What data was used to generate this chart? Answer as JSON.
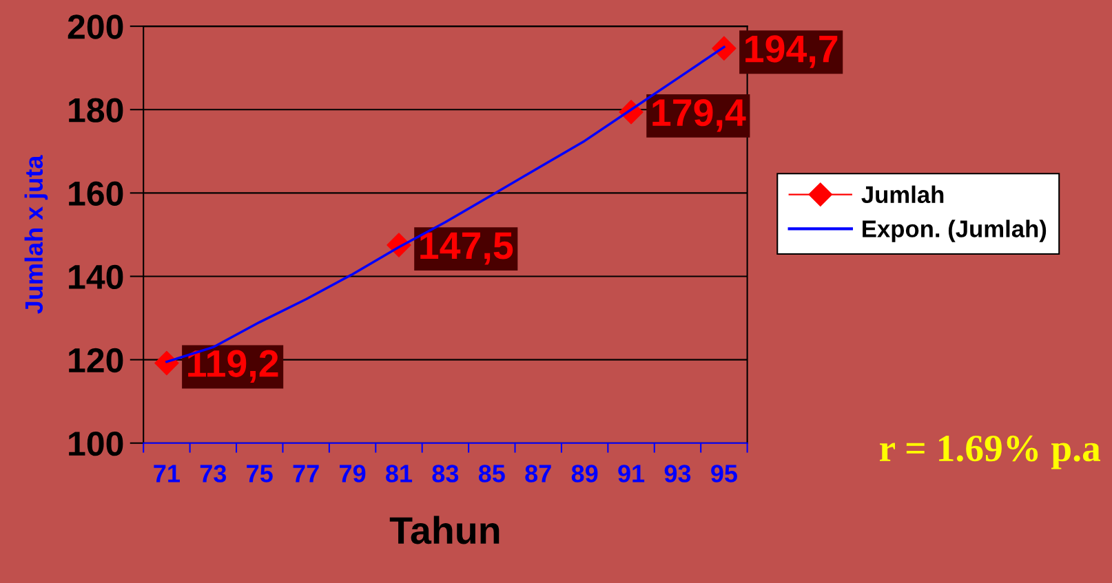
{
  "chart_data": {
    "type": "line",
    "xlabel": "Tahun",
    "ylabel": "Jumlah x juta",
    "series": [
      {
        "name": "Jumlah",
        "type": "scatter",
        "color": "#ff0000",
        "marker": "diamond",
        "x": [
          71,
          81,
          91,
          95
        ],
        "values": [
          119.2,
          147.5,
          179.4,
          194.7
        ],
        "value_labels": [
          "119,2",
          "147,5",
          "179,4",
          "194,7"
        ]
      },
      {
        "name": "Expon. (Jumlah)",
        "color": "#0000ff",
        "marker": "none",
        "x": [
          71,
          73,
          75,
          77,
          79,
          81,
          83,
          85,
          87,
          89,
          91,
          93,
          95
        ],
        "values": [
          119.5,
          123,
          129,
          134.5,
          140.5,
          147,
          153,
          159.5,
          166,
          172.5,
          180,
          187.5,
          195
        ]
      }
    ],
    "xlim": [
      70,
      96
    ],
    "xticks": [
      {
        "value": 70,
        "label": null
      },
      71,
      {
        "value": 72,
        "label": null
      },
      73,
      {
        "value": 74,
        "label": null
      },
      75,
      {
        "value": 76,
        "label": null
      },
      77,
      {
        "value": 78,
        "label": null
      },
      79,
      {
        "value": 80,
        "label": null
      },
      81,
      {
        "value": 82,
        "label": null
      },
      83,
      {
        "value": 84,
        "label": null
      },
      85,
      {
        "value": 86,
        "label": null
      },
      87,
      {
        "value": 88,
        "label": null
      },
      89,
      {
        "value": 90,
        "label": null
      },
      91,
      {
        "value": 92,
        "label": null
      },
      93,
      {
        "value": 94,
        "label": null
      },
      95,
      {
        "value": 96,
        "label": null
      }
    ],
    "ylim": [
      100,
      200
    ],
    "yticks": [
      100,
      120,
      140,
      160,
      180,
      200
    ],
    "grid": "y",
    "legend": "right",
    "annotations": [
      "r = 1.69% p.a"
    ]
  }
}
